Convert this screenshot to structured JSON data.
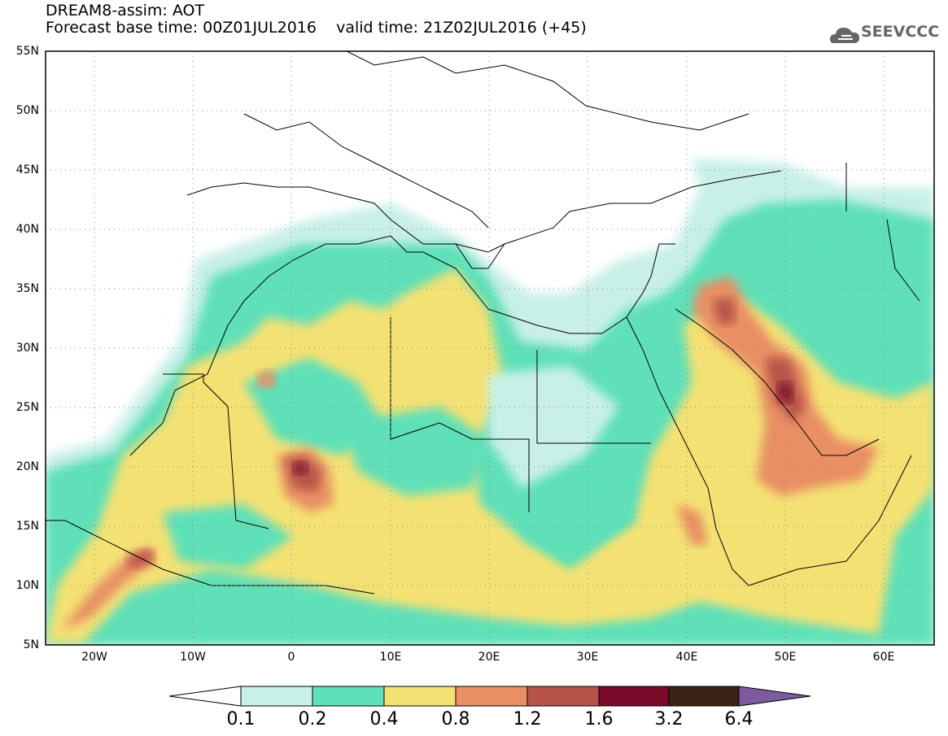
{
  "header": {
    "title_line1": "DREAM8-assim: AOT",
    "title_line2": "Forecast base time: 00Z01JUL2016    valid time: 21Z02JUL2016 (+45)"
  },
  "logo": {
    "text": "SEEVCCC",
    "icon": "cloud-icon"
  },
  "map": {
    "lat_labels": [
      "55N",
      "50N",
      "45N",
      "40N",
      "35N",
      "30N",
      "25N",
      "20N",
      "15N",
      "10N",
      "5N"
    ],
    "lon_labels": [
      "20W",
      "10W",
      "0",
      "10E",
      "20E",
      "30E",
      "40E",
      "50E",
      "60E"
    ]
  },
  "colorbar": {
    "ticks": [
      "0.1",
      "0.2",
      "0.4",
      "0.8",
      "1.2",
      "1.6",
      "3.2",
      "6.4"
    ],
    "colors": [
      "#ffffff",
      "#c8f0e6",
      "#5ee0b8",
      "#f4e173",
      "#e88f64",
      "#b7544a",
      "#7a0a2a",
      "#3a2415",
      "#7e5a9e"
    ]
  }
}
